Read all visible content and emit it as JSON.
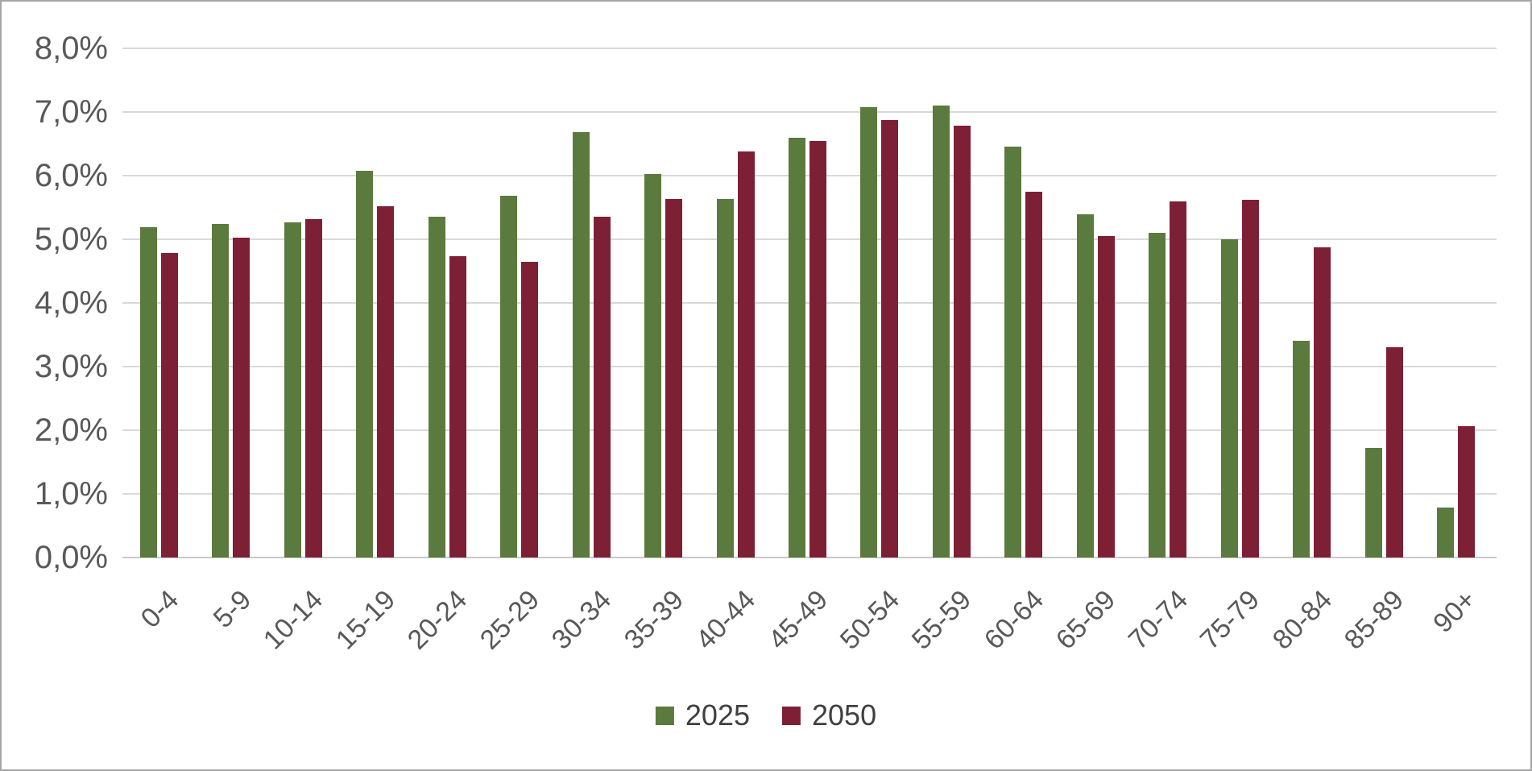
{
  "chart_data": {
    "type": "bar",
    "title": "",
    "xlabel": "",
    "ylabel": "",
    "categories": [
      "0-4",
      "5-9",
      "10-14",
      "15-19",
      "20-24",
      "25-29",
      "30-34",
      "35-39",
      "40-44",
      "45-49",
      "50-54",
      "55-59",
      "60-64",
      "65-69",
      "70-74",
      "75-79",
      "80-84",
      "85-89",
      "90+"
    ],
    "series": [
      {
        "name": "2025",
        "color": "#5B7A3E",
        "values": [
          5.19,
          5.24,
          5.27,
          6.08,
          5.36,
          5.68,
          6.69,
          6.02,
          5.63,
          6.59,
          7.08,
          7.1,
          6.45,
          5.39,
          5.1,
          5.0,
          3.41,
          1.72,
          0.79
        ]
      },
      {
        "name": "2050",
        "color": "#7D2035",
        "values": [
          4.78,
          5.03,
          5.32,
          5.52,
          4.73,
          4.64,
          5.35,
          5.63,
          6.38,
          6.54,
          6.88,
          6.78,
          5.75,
          5.05,
          5.6,
          5.62,
          4.87,
          3.31,
          2.06
        ]
      }
    ],
    "ylim": [
      0,
      8
    ],
    "y_tick_step": 1,
    "y_tick_labels": [
      "0,0%",
      "1,0%",
      "2,0%",
      "3,0%",
      "4,0%",
      "5,0%",
      "6,0%",
      "7,0%",
      "8,0%"
    ],
    "grid": "horizontal",
    "legend_position": "bottom",
    "colors": {
      "gridline": "#D9D9D9",
      "axis_line": "#C9C9C9",
      "tick_text": "#595959",
      "legend_text": "#404040",
      "background": "#FFFFFF",
      "border": "#A6A6A6"
    }
  }
}
